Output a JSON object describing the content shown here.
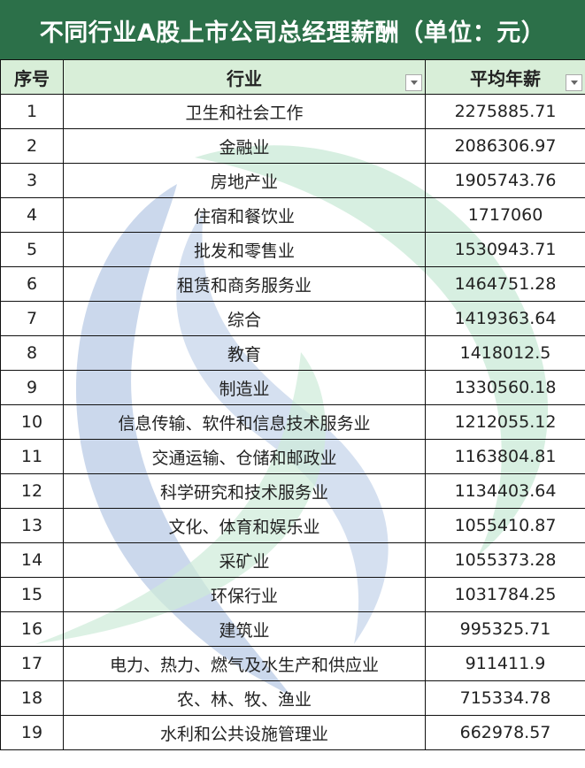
{
  "colors": {
    "title_bg": "#2c7049",
    "header_bg": "#d8eed8",
    "watermark_blue": "#b9cbe6",
    "watermark_green": "#cdebd9"
  },
  "title": "不同行业A股上市公司总经理薪酬（单位：元）",
  "headers": {
    "index": "序号",
    "industry": "行业",
    "salary": "平均年薪",
    "filter_icon": "dropdown-arrow"
  },
  "rows": [
    {
      "index": "1",
      "industry": "卫生和社会工作",
      "salary": "2275885.71"
    },
    {
      "index": "2",
      "industry": "金融业",
      "salary": "2086306.97"
    },
    {
      "index": "3",
      "industry": "房地产业",
      "salary": "1905743.76"
    },
    {
      "index": "4",
      "industry": "住宿和餐饮业",
      "salary": "1717060"
    },
    {
      "index": "5",
      "industry": "批发和零售业",
      "salary": "1530943.71"
    },
    {
      "index": "6",
      "industry": "租赁和商务服务业",
      "salary": "1464751.28"
    },
    {
      "index": "7",
      "industry": "综合",
      "salary": "1419363.64"
    },
    {
      "index": "8",
      "industry": "教育",
      "salary": "1418012.5"
    },
    {
      "index": "9",
      "industry": "制造业",
      "salary": "1330560.18"
    },
    {
      "index": "10",
      "industry": "信息传输、软件和信息技术服务业",
      "salary": "1212055.12"
    },
    {
      "index": "11",
      "industry": "交通运输、仓储和邮政业",
      "salary": "1163804.81"
    },
    {
      "index": "12",
      "industry": "科学研究和技术服务业",
      "salary": "1134403.64"
    },
    {
      "index": "13",
      "industry": "文化、体育和娱乐业",
      "salary": "1055410.87"
    },
    {
      "index": "14",
      "industry": "采矿业",
      "salary": "1055373.28"
    },
    {
      "index": "15",
      "industry": "环保行业",
      "salary": "1031784.25"
    },
    {
      "index": "16",
      "industry": "建筑业",
      "salary": "995325.71"
    },
    {
      "index": "17",
      "industry": "电力、热力、燃气及水生产和供应业",
      "salary": "911411.9"
    },
    {
      "index": "18",
      "industry": "农、林、牧、渔业",
      "salary": "715334.78"
    },
    {
      "index": "19",
      "industry": "水利和公共设施管理业",
      "salary": "662978.57"
    }
  ]
}
